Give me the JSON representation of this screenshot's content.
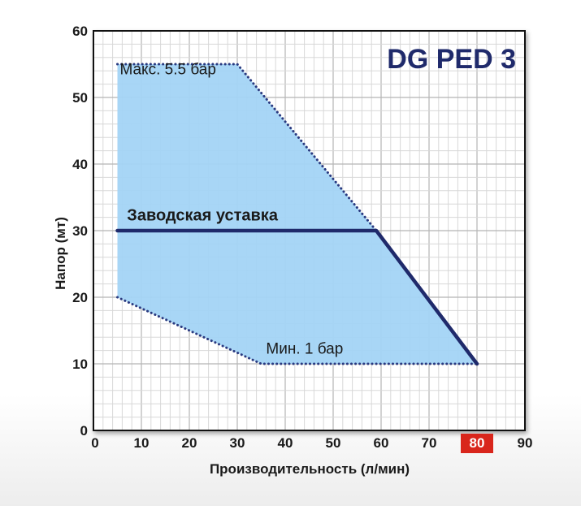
{
  "chart_data": {
    "type": "area",
    "title": "DG PED 3",
    "xlabel": "Производительность (л/мин)",
    "ylabel": "Напор (мт)",
    "xlim": [
      0,
      90
    ],
    "ylim": [
      0,
      60
    ],
    "x_ticks": [
      "0",
      "10",
      "20",
      "30",
      "40",
      "50",
      "60",
      "70",
      "80",
      "90"
    ],
    "y_ticks": [
      "0",
      "10",
      "20",
      "30",
      "40",
      "50",
      "60"
    ],
    "highlighted_x_tick": "80",
    "grid": true,
    "colors": {
      "region_fill": "#a3d4f5",
      "dotted_border": "#2a3a80",
      "setpoint_line": "#1f2a6b",
      "title": "#1f2a6b",
      "highlight_tick_bg": "#d9261c",
      "grid": "#c8c8c8"
    },
    "series": [
      {
        "name": "Макс. 5.5 бар",
        "style": "dotted",
        "points": [
          [
            5,
            55
          ],
          [
            30,
            55
          ],
          [
            59,
            30
          ]
        ]
      },
      {
        "name": "Мин. 1 бар",
        "style": "dotted",
        "points": [
          [
            5,
            20
          ],
          [
            35,
            10
          ],
          [
            80,
            10
          ]
        ]
      },
      {
        "name": "Заводская уставка",
        "style": "solid",
        "points": [
          [
            5,
            30
          ],
          [
            59,
            30
          ],
          [
            80,
            10
          ]
        ]
      }
    ],
    "region": [
      [
        5,
        55
      ],
      [
        30,
        55
      ],
      [
        59,
        30
      ],
      [
        80,
        10
      ],
      [
        35,
        10
      ],
      [
        5,
        20
      ]
    ],
    "annotations": [
      {
        "text": "Макс. 5.5 бар",
        "x": 5.5,
        "y": 53.5,
        "style": "plain"
      },
      {
        "text": "Заводская уставка",
        "x": 7,
        "y": 31.5,
        "style": "bold"
      },
      {
        "text": "Мин. 1 бар",
        "x": 36,
        "y": 11.5,
        "style": "plain"
      }
    ]
  }
}
